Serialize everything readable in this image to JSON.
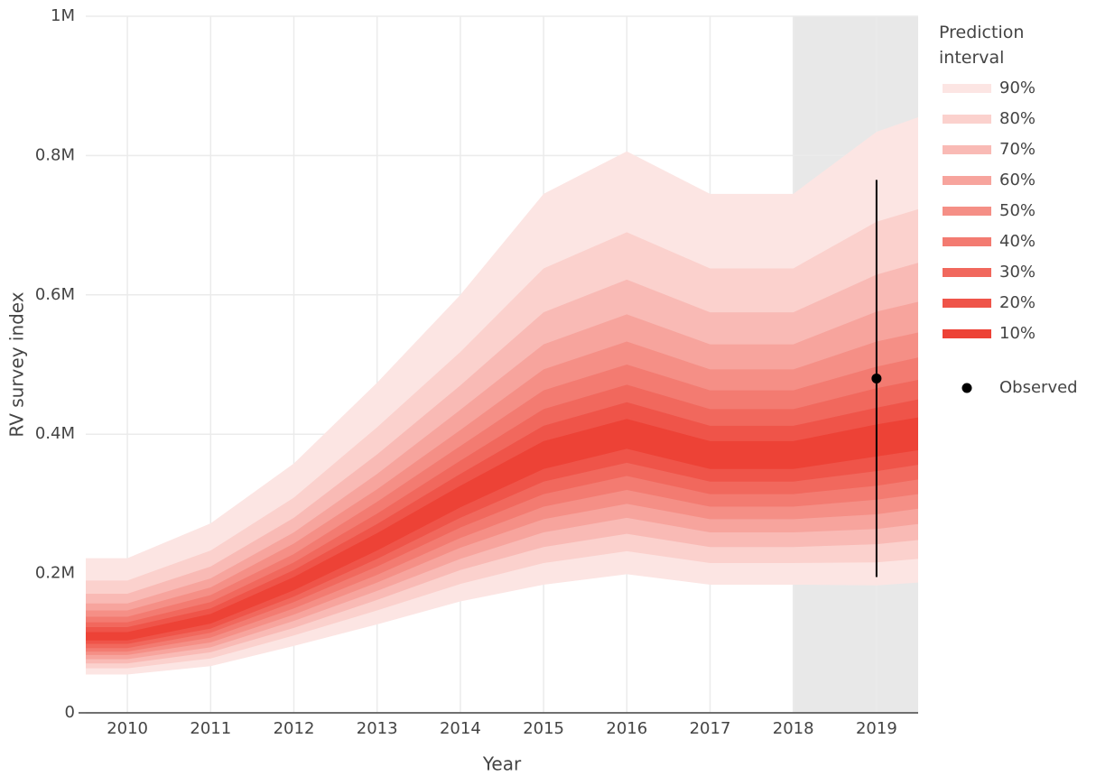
{
  "chart_data": {
    "type": "fan",
    "x_label": "Year",
    "y_label": "RV survey index",
    "legend_title": "Prediction interval",
    "x": [
      2009.5,
      2010,
      2011,
      2012,
      2013,
      2014,
      2015,
      2016,
      2017,
      2018,
      2019,
      2019.5
    ],
    "xlim": [
      2009.5,
      2019.5
    ],
    "xticks": [
      2010,
      2011,
      2012,
      2013,
      2014,
      2015,
      2016,
      2017,
      2018,
      2019
    ],
    "ylim": [
      0,
      1000000
    ],
    "yticks": [
      0,
      {
        "value": 200000,
        "label": "0.2M"
      },
      {
        "value": 400000,
        "label": "0.4M"
      },
      {
        "value": 600000,
        "label": "0.6M"
      },
      {
        "value": 800000,
        "label": "0.8M"
      },
      {
        "value": 1000000,
        "label": "1M"
      }
    ],
    "grid": true,
    "shaded_xrange": [
      2018,
      2019.5
    ],
    "shade_color": "#e8e8e8",
    "series": [
      {
        "name": "90%",
        "color": "#fce5e3",
        "upper": [
          222000,
          222000,
          272000,
          358000,
          474000,
          600000,
          745000,
          806000,
          745000,
          745000,
          834000,
          855000
        ],
        "lower": [
          55000,
          55000,
          67000,
          96000,
          127000,
          160000,
          184000,
          199000,
          184000,
          184000,
          183000,
          187000
        ]
      },
      {
        "name": "80%",
        "color": "#fbd1cd",
        "upper": [
          190000,
          190000,
          233000,
          309000,
          410000,
          518000,
          638000,
          690000,
          638000,
          638000,
          705000,
          723000
        ],
        "lower": [
          64000,
          64000,
          78000,
          111000,
          147000,
          185000,
          215000,
          232000,
          215000,
          215000,
          216000,
          221000
        ]
      },
      {
        "name": "70%",
        "color": "#f9bab5",
        "upper": [
          171000,
          171000,
          210000,
          280000,
          371000,
          470000,
          575000,
          622000,
          575000,
          575000,
          629000,
          646000
        ],
        "lower": [
          71000,
          71000,
          87000,
          122000,
          162000,
          205000,
          238000,
          257000,
          238000,
          238000,
          242000,
          248000
        ]
      },
      {
        "name": "60%",
        "color": "#f7a49d",
        "upper": [
          157000,
          157000,
          193000,
          259000,
          343000,
          435000,
          529000,
          572000,
          529000,
          529000,
          576000,
          590000
        ],
        "lower": [
          77000,
          77000,
          94000,
          132000,
          175000,
          221000,
          259000,
          280000,
          259000,
          259000,
          264000,
          271000
        ]
      },
      {
        "name": "50%",
        "color": "#f58f86",
        "upper": [
          147000,
          147000,
          180000,
          243000,
          321000,
          406000,
          493000,
          533000,
          493000,
          493000,
          533000,
          546000
        ],
        "lower": [
          83000,
          83000,
          101000,
          141000,
          187000,
          237000,
          278000,
          300000,
          278000,
          278000,
          285000,
          293000
        ]
      },
      {
        "name": "40%",
        "color": "#f37b71",
        "upper": [
          138000,
          138000,
          169000,
          228000,
          303000,
          383000,
          463000,
          500000,
          463000,
          463000,
          497000,
          510000
        ],
        "lower": [
          88000,
          88000,
          108000,
          150000,
          198000,
          251000,
          296000,
          320000,
          296000,
          296000,
          306000,
          314000
        ]
      },
      {
        "name": "30%",
        "color": "#f1685d",
        "upper": [
          130000,
          130000,
          159000,
          216000,
          286000,
          362000,
          436000,
          471000,
          436000,
          436000,
          466000,
          478000
        ],
        "lower": [
          93000,
          93000,
          115000,
          159000,
          210000,
          266000,
          314000,
          340000,
          314000,
          314000,
          326000,
          335000
        ]
      },
      {
        "name": "20%",
        "color": "#ef5449",
        "upper": [
          123000,
          123000,
          150000,
          205000,
          271000,
          343000,
          412000,
          446000,
          412000,
          412000,
          438000,
          450000
        ],
        "lower": [
          99000,
          99000,
          121000,
          167000,
          221000,
          280000,
          332000,
          359000,
          332000,
          332000,
          347000,
          356000
        ]
      },
      {
        "name": "10%",
        "color": "#ed4236",
        "upper": [
          116000,
          116000,
          142000,
          195000,
          258000,
          326000,
          390000,
          422000,
          390000,
          390000,
          414000,
          424000
        ],
        "lower": [
          104000,
          104000,
          128000,
          176000,
          233000,
          295000,
          350000,
          379000,
          350000,
          350000,
          368000,
          377000
        ]
      }
    ],
    "observed": {
      "name": "Observed",
      "color": "#000000",
      "x": [
        2019
      ],
      "values": [
        480000
      ],
      "lower": [
        195000
      ],
      "upper": [
        765000
      ]
    }
  }
}
